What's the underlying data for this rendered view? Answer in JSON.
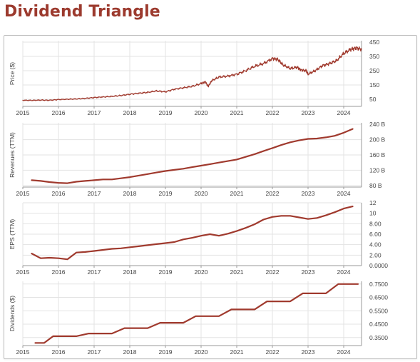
{
  "page": {
    "title": "Dividend Triangle"
  },
  "style": {
    "accent_color": "#9c3a2e",
    "line_color": "#a03a2e",
    "grid_color": "#e3e3e3"
  },
  "chart_data": [
    {
      "type": "line",
      "ylabel": "Price ($)",
      "x_ticks": [
        "2015",
        "2016",
        "2017",
        "2018",
        "2019",
        "2020",
        "2021",
        "2022",
        "2023",
        "2024"
      ],
      "y_ticks": [
        {
          "value": 50,
          "label": "50"
        },
        {
          "value": 150,
          "label": "150"
        },
        {
          "value": 250,
          "label": "250"
        },
        {
          "value": 350,
          "label": "350"
        },
        {
          "value": 450,
          "label": "450"
        }
      ],
      "xlim": [
        2015.0,
        2024.5
      ],
      "ylim": [
        0,
        460
      ],
      "grid": true,
      "series": [
        {
          "x": [
            2015.0,
            2015.25,
            2015.5,
            2015.75,
            2016.0,
            2016.25,
            2016.5,
            2016.75,
            2017.0,
            2017.25,
            2017.5,
            2017.75,
            2018.0,
            2018.25,
            2018.5,
            2018.75,
            2019.0,
            2019.25,
            2019.5,
            2019.75,
            2020.0,
            2020.12,
            2020.2,
            2020.3,
            2020.5,
            2020.75,
            2021.0,
            2021.25,
            2021.5,
            2021.75,
            2022.0,
            2022.15,
            2022.3,
            2022.5,
            2022.7,
            2022.8,
            2022.95,
            2023.0,
            2023.2,
            2023.4,
            2023.6,
            2023.8,
            2024.0,
            2024.2,
            2024.35,
            2024.5
          ],
          "values": [
            43,
            42,
            44,
            43,
            48,
            50,
            52,
            56,
            62,
            66,
            70,
            76,
            85,
            92,
            98,
            108,
            102,
            120,
            130,
            140,
            160,
            172,
            140,
            180,
            205,
            212,
            225,
            250,
            280,
            300,
            335,
            330,
            290,
            265,
            275,
            255,
            250,
            225,
            250,
            285,
            300,
            320,
            370,
            400,
            410,
            400
          ]
        }
      ]
    },
    {
      "type": "line",
      "ylabel": "Revenues (TTM)",
      "x_ticks": [
        "2015",
        "2016",
        "2017",
        "2018",
        "2019",
        "2020",
        "2021",
        "2022",
        "2023",
        "2024"
      ],
      "y_ticks": [
        {
          "value": 80,
          "label": "80 B"
        },
        {
          "value": 120,
          "label": "120 B"
        },
        {
          "value": 160,
          "label": "160 B"
        },
        {
          "value": 200,
          "label": "200 B"
        },
        {
          "value": 240,
          "label": "240 B"
        }
      ],
      "xlim": [
        2015.0,
        2024.5
      ],
      "ylim": [
        76,
        244
      ],
      "grid": true,
      "series": [
        {
          "x": [
            2015.25,
            2015.5,
            2015.75,
            2016.0,
            2016.25,
            2016.5,
            2016.75,
            2017.0,
            2017.25,
            2017.5,
            2017.75,
            2018.0,
            2018.25,
            2018.5,
            2018.75,
            2019.0,
            2019.25,
            2019.5,
            2019.75,
            2020.0,
            2020.25,
            2020.5,
            2020.75,
            2021.0,
            2021.25,
            2021.5,
            2021.75,
            2022.0,
            2022.25,
            2022.5,
            2022.75,
            2023.0,
            2023.25,
            2023.5,
            2023.75,
            2024.0,
            2024.25
          ],
          "values": [
            94,
            92,
            89,
            87,
            86,
            90,
            92,
            94,
            96,
            96,
            99,
            102,
            106,
            110,
            114,
            118,
            121,
            124,
            128,
            132,
            136,
            140,
            144,
            148,
            155,
            162,
            170,
            178,
            186,
            193,
            198,
            202,
            203,
            206,
            210,
            218,
            228
          ]
        }
      ]
    },
    {
      "type": "line",
      "ylabel": "EPS (TTM)",
      "x_ticks": [
        "2015",
        "2016",
        "2017",
        "2018",
        "2019",
        "2020",
        "2021",
        "2022",
        "2023",
        "2024"
      ],
      "y_ticks": [
        {
          "value": 0,
          "label": "0.0000"
        },
        {
          "value": 2,
          "label": "2.00"
        },
        {
          "value": 4,
          "label": "4.00"
        },
        {
          "value": 6,
          "label": "6.00"
        },
        {
          "value": 8,
          "label": "8.00"
        },
        {
          "value": 10,
          "label": "10"
        },
        {
          "value": 12,
          "label": "12"
        }
      ],
      "xlim": [
        2015.0,
        2024.5
      ],
      "ylim": [
        0,
        12
      ],
      "grid": true,
      "series": [
        {
          "x": [
            2015.25,
            2015.5,
            2015.75,
            2016.0,
            2016.25,
            2016.5,
            2016.75,
            2017.0,
            2017.25,
            2017.5,
            2017.75,
            2018.0,
            2018.25,
            2018.5,
            2018.75,
            2019.0,
            2019.25,
            2019.5,
            2019.75,
            2020.0,
            2020.25,
            2020.5,
            2020.75,
            2021.0,
            2021.25,
            2021.5,
            2021.75,
            2022.0,
            2022.25,
            2022.5,
            2022.75,
            2023.0,
            2023.25,
            2023.5,
            2023.75,
            2024.0,
            2024.25
          ],
          "values": [
            2.3,
            1.4,
            1.5,
            1.4,
            1.2,
            2.5,
            2.6,
            2.8,
            3.0,
            3.2,
            3.3,
            3.5,
            3.7,
            3.9,
            4.1,
            4.3,
            4.5,
            5.0,
            5.3,
            5.7,
            6.0,
            5.7,
            6.1,
            6.6,
            7.2,
            7.9,
            8.8,
            9.3,
            9.5,
            9.5,
            9.2,
            8.9,
            9.1,
            9.6,
            10.2,
            10.9,
            11.3
          ]
        }
      ]
    },
    {
      "type": "line",
      "ylabel": "Dividends ($)",
      "x_ticks": [
        "2015",
        "2016",
        "2017",
        "2018",
        "2019",
        "2020",
        "2021",
        "2022",
        "2023",
        "2024"
      ],
      "y_ticks": [
        {
          "value": 0.35,
          "label": "0.3500"
        },
        {
          "value": 0.45,
          "label": "0.4500"
        },
        {
          "value": 0.55,
          "label": "0.5500"
        },
        {
          "value": 0.65,
          "label": "0.6500"
        },
        {
          "value": 0.75,
          "label": "0.7500"
        }
      ],
      "xlim": [
        2015.0,
        2024.5
      ],
      "ylim": [
        0.29,
        0.77
      ],
      "grid": true,
      "series": [
        {
          "x": [
            2015.35,
            2015.6,
            2015.85,
            2016.5,
            2016.85,
            2017.5,
            2017.85,
            2018.5,
            2018.85,
            2019.5,
            2019.85,
            2020.5,
            2020.85,
            2021.5,
            2021.85,
            2022.5,
            2022.85,
            2023.5,
            2023.85,
            2024.4
          ],
          "values": [
            0.31,
            0.31,
            0.36,
            0.36,
            0.38,
            0.38,
            0.42,
            0.42,
            0.46,
            0.46,
            0.51,
            0.51,
            0.56,
            0.56,
            0.62,
            0.62,
            0.68,
            0.68,
            0.75,
            0.75
          ]
        }
      ]
    }
  ]
}
